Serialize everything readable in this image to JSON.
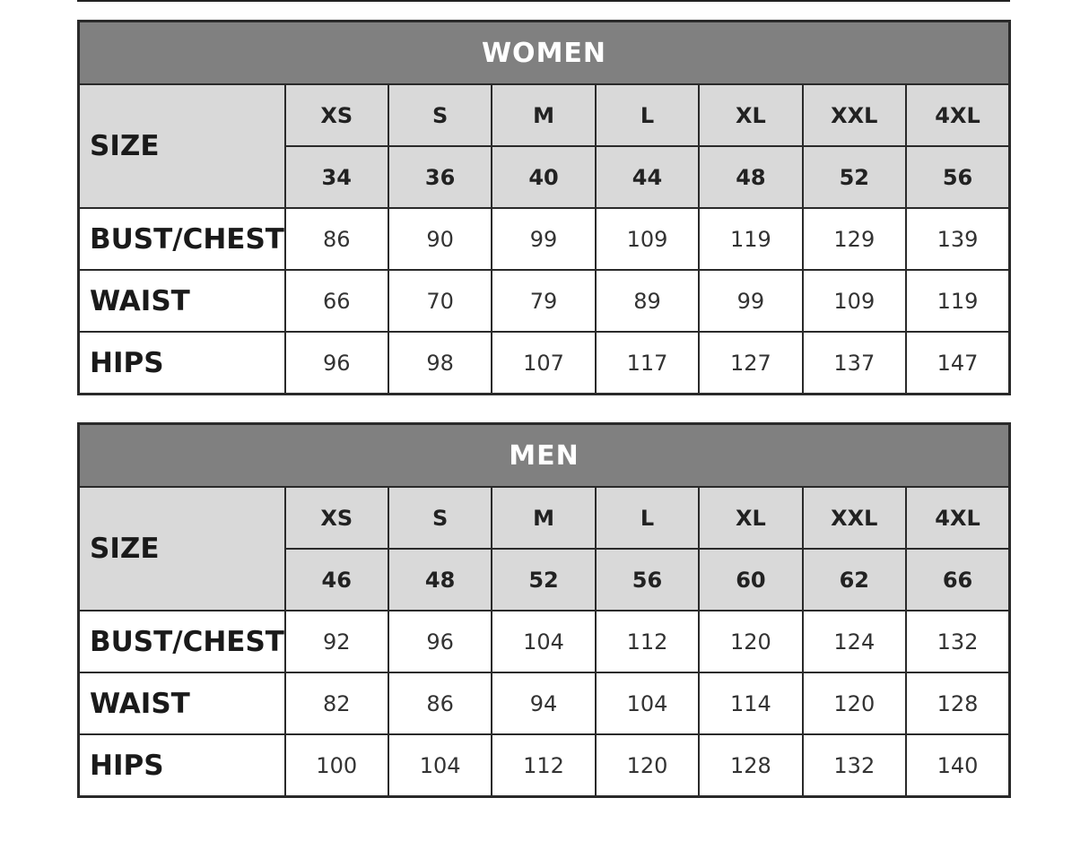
{
  "tables": [
    {
      "title": "WOMEN",
      "size_label": "SIZE",
      "sizes": [
        "XS",
        "S",
        "M",
        "L",
        "XL",
        "XXL",
        "4XL"
      ],
      "numeric_sizes": [
        "34",
        "36",
        "40",
        "44",
        "48",
        "52",
        "56"
      ],
      "rows": [
        {
          "label": "BUST/CHEST",
          "values": [
            "86",
            "90",
            "99",
            "109",
            "119",
            "129",
            "139"
          ]
        },
        {
          "label": "WAIST",
          "values": [
            "66",
            "70",
            "79",
            "89",
            "99",
            "109",
            "119"
          ]
        },
        {
          "label": "HIPS",
          "values": [
            "96",
            "98",
            "107",
            "117",
            "127",
            "137",
            "147"
          ]
        }
      ]
    },
    {
      "title": "MEN",
      "size_label": "SIZE",
      "sizes": [
        "XS",
        "S",
        "M",
        "L",
        "XL",
        "XXL",
        "4XL"
      ],
      "numeric_sizes": [
        "46",
        "48",
        "52",
        "56",
        "60",
        "62",
        "66"
      ],
      "rows": [
        {
          "label": "BUST/CHEST",
          "values": [
            "92",
            "96",
            "104",
            "112",
            "120",
            "124",
            "132"
          ]
        },
        {
          "label": "WAIST",
          "values": [
            "82",
            "86",
            "94",
            "104",
            "114",
            "120",
            "128"
          ]
        },
        {
          "label": "HIPS",
          "values": [
            "100",
            "104",
            "112",
            "120",
            "128",
            "132",
            "140"
          ]
        }
      ]
    }
  ],
  "colors": {
    "title_bg": "#808080",
    "header_bg": "#d9d9d9",
    "border": "#2a2a2a"
  }
}
